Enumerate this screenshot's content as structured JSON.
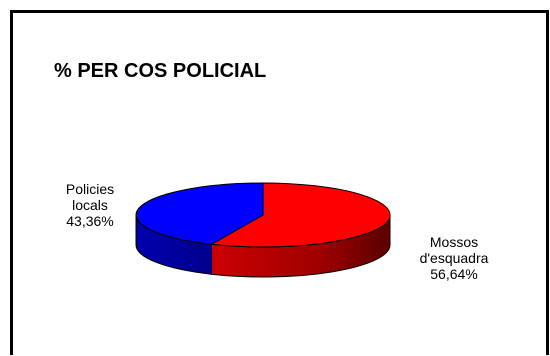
{
  "chart_data": {
    "type": "pie",
    "title": "% PER COS POLICIAL",
    "slices": [
      {
        "line1": "Policies",
        "line2": "locals",
        "value_label": "43,36%",
        "value": 43.36,
        "color": "#0000ff",
        "side_color": "#0000a8"
      },
      {
        "line1": "Mossos",
        "line2": "d'esquadra",
        "value_label": "56,64%",
        "value": 56.64,
        "color": "#ff0000",
        "side_color": "#8a0000"
      }
    ],
    "style": "3d",
    "legend": "none"
  }
}
